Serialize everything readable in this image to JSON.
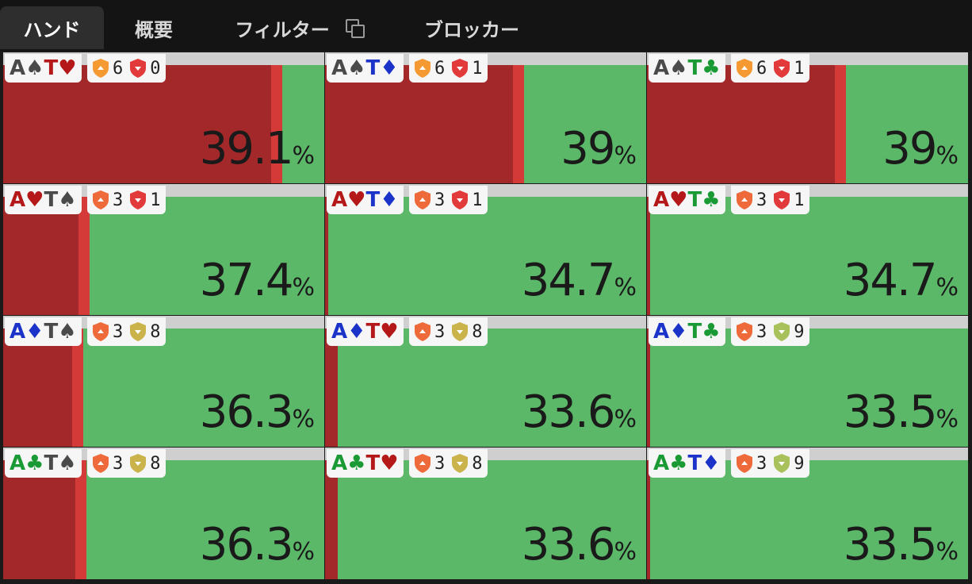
{
  "tabs": [
    {
      "label": "ハンド",
      "active": true
    },
    {
      "label": "概要",
      "active": false
    },
    {
      "label": "フィルター",
      "active": false,
      "icon": "copy-icon"
    },
    {
      "label": "ブロッカー",
      "active": false
    }
  ],
  "colors": {
    "green": "#5cb869",
    "red": "#a3282a",
    "red_edge": "#d33a38",
    "orange_shield": "#f08a3a",
    "red_shield": "#e23a3a",
    "olive_shield": "#c9b34a",
    "lime_shield": "#a9c15a"
  },
  "cells": [
    {
      "hand": {
        "r1": "A",
        "s1": "♠",
        "c1": "grey",
        "r2": "T",
        "s2": "♥",
        "c2": "red"
      },
      "shield1_color": "#f59a32",
      "n1": "6",
      "shield2_color": "#e23a3a",
      "n2": "0",
      "pct": "39.1",
      "red_fraction": 0.87
    },
    {
      "hand": {
        "r1": "A",
        "s1": "♠",
        "c1": "grey",
        "r2": "T",
        "s2": "♦",
        "c2": "blue"
      },
      "shield1_color": "#f59a32",
      "n1": "6",
      "shield2_color": "#e23a3a",
      "n2": "1",
      "pct": "39",
      "red_fraction": 0.62
    },
    {
      "hand": {
        "r1": "A",
        "s1": "♠",
        "c1": "grey",
        "r2": "T",
        "s2": "♣",
        "c2": "green"
      },
      "shield1_color": "#f59a32",
      "n1": "6",
      "shield2_color": "#e23a3a",
      "n2": "1",
      "pct": "39",
      "red_fraction": 0.62
    },
    {
      "hand": {
        "r1": "A",
        "s1": "♥",
        "c1": "red",
        "r2": "T",
        "s2": "♠",
        "c2": "grey"
      },
      "shield1_color": "#ee6a3a",
      "n1": "3",
      "shield2_color": "#e23a3a",
      "n2": "1",
      "pct": "37.4",
      "red_fraction": 0.27
    },
    {
      "hand": {
        "r1": "A",
        "s1": "♥",
        "c1": "red",
        "r2": "T",
        "s2": "♦",
        "c2": "blue"
      },
      "shield1_color": "#ee6a3a",
      "n1": "3",
      "shield2_color": "#e23a3a",
      "n2": "1",
      "pct": "34.7",
      "red_fraction": 0.01
    },
    {
      "hand": {
        "r1": "A",
        "s1": "♥",
        "c1": "red",
        "r2": "T",
        "s2": "♣",
        "c2": "green"
      },
      "shield1_color": "#ee6a3a",
      "n1": "3",
      "shield2_color": "#e23a3a",
      "n2": "1",
      "pct": "34.7",
      "red_fraction": 0.01
    },
    {
      "hand": {
        "r1": "A",
        "s1": "♦",
        "c1": "blue",
        "r2": "T",
        "s2": "♠",
        "c2": "grey"
      },
      "shield1_color": "#ee6a3a",
      "n1": "3",
      "shield2_color": "#c9b34a",
      "n2": "8",
      "pct": "36.3",
      "red_fraction": 0.25
    },
    {
      "hand": {
        "r1": "A",
        "s1": "♦",
        "c1": "blue",
        "r2": "T",
        "s2": "♥",
        "c2": "red"
      },
      "shield1_color": "#ee6a3a",
      "n1": "3",
      "shield2_color": "#c9b34a",
      "n2": "8",
      "pct": "33.6",
      "red_fraction": 0.04
    },
    {
      "hand": {
        "r1": "A",
        "s1": "♦",
        "c1": "blue",
        "r2": "T",
        "s2": "♣",
        "c2": "green"
      },
      "shield1_color": "#ee6a3a",
      "n1": "3",
      "shield2_color": "#a9c15a",
      "n2": "9",
      "pct": "33.5",
      "red_fraction": 0.01
    },
    {
      "hand": {
        "r1": "A",
        "s1": "♣",
        "c1": "green",
        "r2": "T",
        "s2": "♠",
        "c2": "grey"
      },
      "shield1_color": "#ee6a3a",
      "n1": "3",
      "shield2_color": "#c9b34a",
      "n2": "8",
      "pct": "36.3",
      "red_fraction": 0.26
    },
    {
      "hand": {
        "r1": "A",
        "s1": "♣",
        "c1": "green",
        "r2": "T",
        "s2": "♥",
        "c2": "red"
      },
      "shield1_color": "#ee6a3a",
      "n1": "3",
      "shield2_color": "#c9b34a",
      "n2": "8",
      "pct": "33.6",
      "red_fraction": 0.04
    },
    {
      "hand": {
        "r1": "A",
        "s1": "♣",
        "c1": "green",
        "r2": "T",
        "s2": "♦",
        "c2": "blue"
      },
      "shield1_color": "#ee6a3a",
      "n1": "3",
      "shield2_color": "#a9c15a",
      "n2": "9",
      "pct": "33.5",
      "red_fraction": 0.01
    }
  ],
  "percent_sign": "%"
}
